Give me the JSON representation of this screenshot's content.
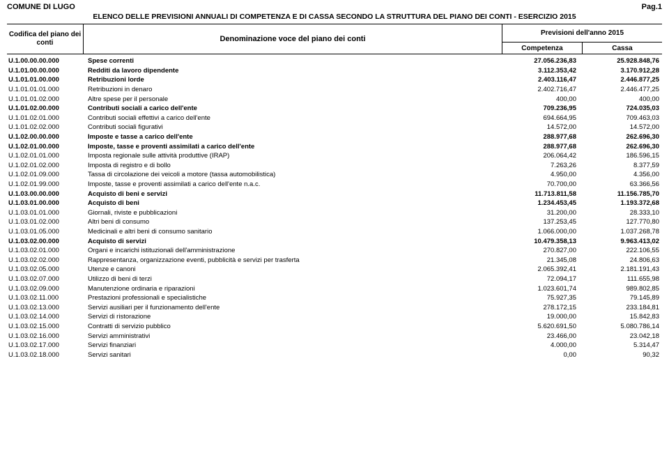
{
  "header": {
    "org": "COMUNE DI LUGO",
    "page_label": "Pag.1",
    "subtitle": "ELENCO DELLE PREVISIONI ANNUALI DI COMPETENZA E DI CASSA SECONDO LA STRUTTURA DEL PIANO DEI CONTI - ESERCIZIO 2015",
    "col_code": "Codifica del piano dei conti",
    "col_desc": "Denominazione voce del piano dei conti",
    "col_prev": "Previsioni dell'anno 2015",
    "col_comp": "Competenza",
    "col_cassa": "Cassa"
  },
  "rows": [
    {
      "bold": true,
      "code": "U.1.00.00.00.000",
      "desc": "Spese correnti",
      "comp": "27.056.236,83",
      "cassa": "25.928.848,76"
    },
    {
      "bold": true,
      "code": "U.1.01.00.00.000",
      "desc": "Redditi da lavoro dipendente",
      "comp": "3.112.353,42",
      "cassa": "3.170.912,28"
    },
    {
      "bold": true,
      "code": "U.1.01.01.00.000",
      "desc": "Retribuzioni lorde",
      "comp": "2.403.116,47",
      "cassa": "2.446.877,25"
    },
    {
      "bold": false,
      "code": "U.1.01.01.01.000",
      "desc": "Retribuzioni in denaro",
      "comp": "2.402.716,47",
      "cassa": "2.446.477,25"
    },
    {
      "bold": false,
      "code": "U.1.01.01.02.000",
      "desc": "Altre spese per il personale",
      "comp": "400,00",
      "cassa": "400,00"
    },
    {
      "bold": true,
      "code": "U.1.01.02.00.000",
      "desc": "Contributi sociali a carico dell'ente",
      "comp": "709.236,95",
      "cassa": "724.035,03"
    },
    {
      "bold": false,
      "code": "U.1.01.02.01.000",
      "desc": "Contributi sociali effettivi a carico dell'ente",
      "comp": "694.664,95",
      "cassa": "709.463,03"
    },
    {
      "bold": false,
      "code": "U.1.01.02.02.000",
      "desc": "Contributi sociali figurativi",
      "comp": "14.572,00",
      "cassa": "14.572,00"
    },
    {
      "bold": true,
      "code": "U.1.02.00.00.000",
      "desc": "Imposte e tasse a carico dell'ente",
      "comp": "288.977,68",
      "cassa": "262.696,30"
    },
    {
      "bold": true,
      "code": "U.1.02.01.00.000",
      "desc": "Imposte, tasse e proventi assimilati a carico dell'ente",
      "comp": "288.977,68",
      "cassa": "262.696,30"
    },
    {
      "bold": false,
      "code": "U.1.02.01.01.000",
      "desc": "Imposta regionale sulle attività produttive (IRAP)",
      "comp": "206.064,42",
      "cassa": "186.596,15"
    },
    {
      "bold": false,
      "code": "U.1.02.01.02.000",
      "desc": "Imposta di registro e di bollo",
      "comp": "7.263,26",
      "cassa": "8.377,59"
    },
    {
      "bold": false,
      "code": "U.1.02.01.09.000",
      "desc": "Tassa di circolazione dei veicoli a motore (tassa automobilistica)",
      "comp": "4.950,00",
      "cassa": "4.356,00"
    },
    {
      "bold": false,
      "code": "U.1.02.01.99.000",
      "desc": "Imposte, tasse e proventi assimilati a carico dell'ente n.a.c.",
      "comp": "70.700,00",
      "cassa": "63.366,56"
    },
    {
      "bold": true,
      "code": "U.1.03.00.00.000",
      "desc": "Acquisto di beni e servizi",
      "comp": "11.713.811,58",
      "cassa": "11.156.785,70"
    },
    {
      "bold": true,
      "code": "U.1.03.01.00.000",
      "desc": "Acquisto di beni",
      "comp": "1.234.453,45",
      "cassa": "1.193.372,68"
    },
    {
      "bold": false,
      "code": "U.1.03.01.01.000",
      "desc": "Giornali, riviste e pubblicazioni",
      "comp": "31.200,00",
      "cassa": "28.333,10"
    },
    {
      "bold": false,
      "code": "U.1.03.01.02.000",
      "desc": "Altri beni di consumo",
      "comp": "137.253,45",
      "cassa": "127.770,80"
    },
    {
      "bold": false,
      "code": "U.1.03.01.05.000",
      "desc": "Medicinali e altri beni di consumo sanitario",
      "comp": "1.066.000,00",
      "cassa": "1.037.268,78"
    },
    {
      "bold": true,
      "code": "U.1.03.02.00.000",
      "desc": "Acquisto di servizi",
      "comp": "10.479.358,13",
      "cassa": "9.963.413,02"
    },
    {
      "bold": false,
      "code": "U.1.03.02.01.000",
      "desc": "Organi e incarichi istituzionali dell'amministrazione",
      "comp": "270.827,00",
      "cassa": "222.106,55"
    },
    {
      "bold": false,
      "code": "U.1.03.02.02.000",
      "desc": "Rappresentanza, organizzazione eventi, pubblicità e servizi per trasferta",
      "comp": "21.345,08",
      "cassa": "24.806,63"
    },
    {
      "bold": false,
      "code": "U.1.03.02.05.000",
      "desc": "Utenze e canoni",
      "comp": "2.065.392,41",
      "cassa": "2.181.191,43"
    },
    {
      "bold": false,
      "code": "U.1.03.02.07.000",
      "desc": "Utilizzo di beni di terzi",
      "comp": "72.094,17",
      "cassa": "111.655,98"
    },
    {
      "bold": false,
      "code": "U.1.03.02.09.000",
      "desc": "Manutenzione ordinaria e riparazioni",
      "comp": "1.023.601,74",
      "cassa": "989.802,85"
    },
    {
      "bold": false,
      "code": "U.1.03.02.11.000",
      "desc": "Prestazioni professionali e specialistiche",
      "comp": "75.927,35",
      "cassa": "79.145,89"
    },
    {
      "bold": false,
      "code": "U.1.03.02.13.000",
      "desc": "Servizi ausiliari per il funzionamento dell'ente",
      "comp": "278.172,15",
      "cassa": "233.184,81"
    },
    {
      "bold": false,
      "code": "U.1.03.02.14.000",
      "desc": "Servizi di ristorazione",
      "comp": "19.000,00",
      "cassa": "15.842,83"
    },
    {
      "bold": false,
      "code": "U.1.03.02.15.000",
      "desc": "Contratti di servizio pubblico",
      "comp": "5.620.691,50",
      "cassa": "5.080.786,14"
    },
    {
      "bold": false,
      "code": "U.1.03.02.16.000",
      "desc": "Servizi amministrativi",
      "comp": "23.466,00",
      "cassa": "23.042,18"
    },
    {
      "bold": false,
      "code": "U.1.03.02.17.000",
      "desc": "Servizi finanziari",
      "comp": "4.000,00",
      "cassa": "5.314,47"
    },
    {
      "bold": false,
      "code": "U.1.03.02.18.000",
      "desc": "Servizi sanitari",
      "comp": "0,00",
      "cassa": "90,32"
    }
  ]
}
